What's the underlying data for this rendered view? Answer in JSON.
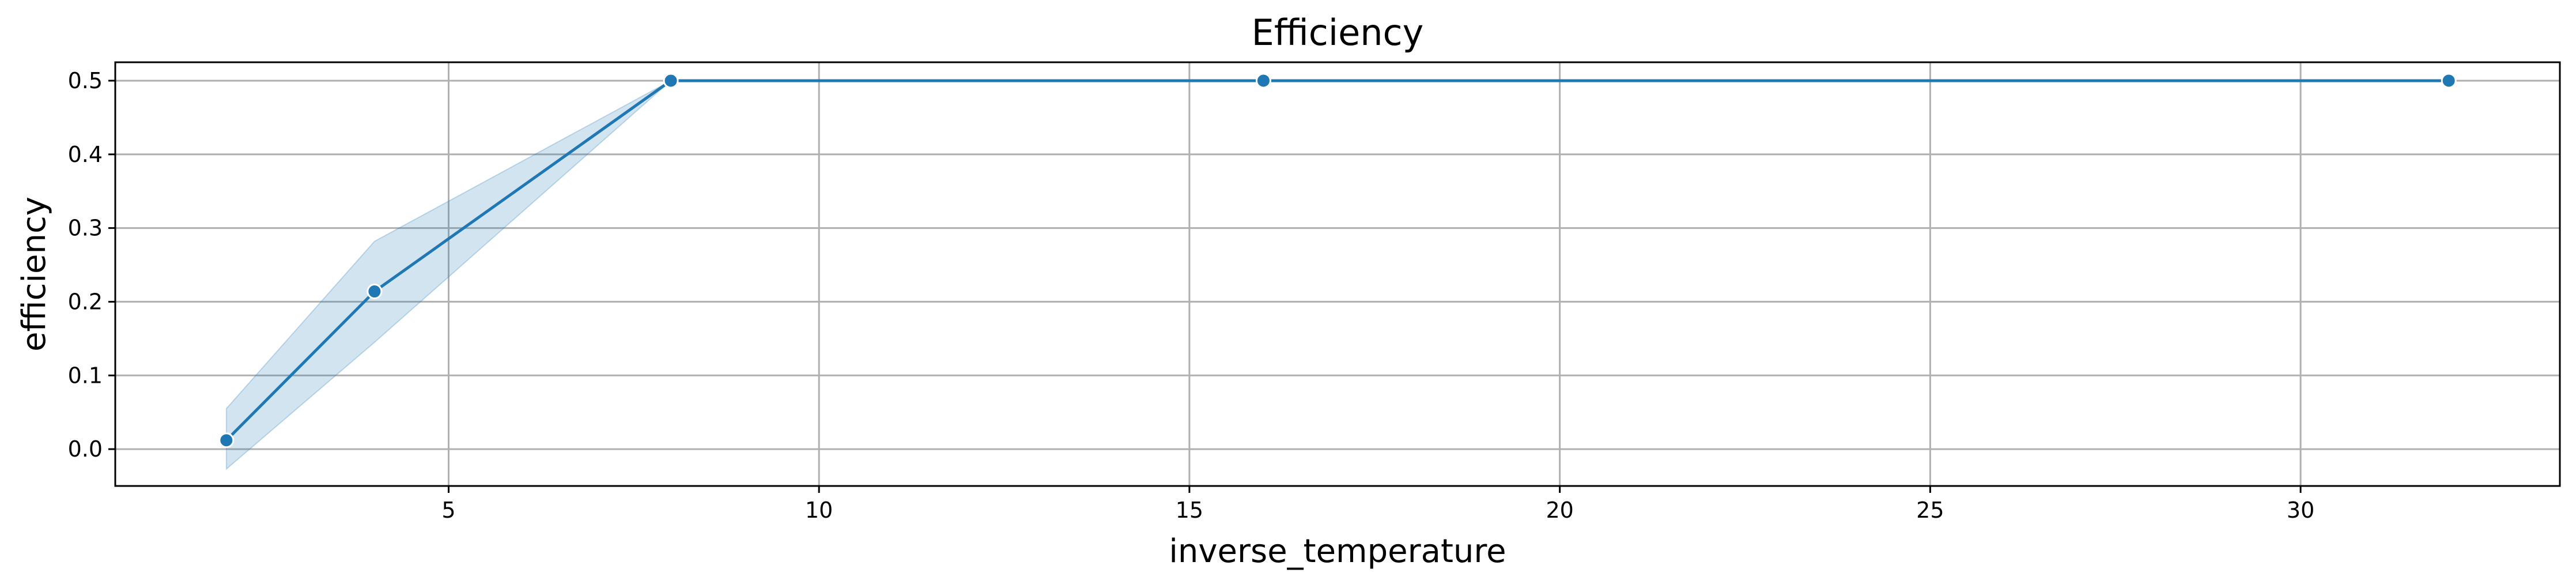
{
  "chart_data": {
    "type": "line",
    "title": "Efficiency",
    "xlabel": "inverse_temperature",
    "ylabel": "efficiency",
    "xlim": [
      0.5,
      33.5
    ],
    "ylim": [
      -0.05,
      0.525
    ],
    "x_ticks": [
      5,
      10,
      15,
      20,
      25,
      30
    ],
    "y_ticks": [
      0.0,
      0.1,
      0.2,
      0.3,
      0.4,
      0.5
    ],
    "x_tick_labels": [
      "5",
      "10",
      "15",
      "20",
      "25",
      "30"
    ],
    "y_tick_labels": [
      "0.0",
      "0.1",
      "0.2",
      "0.3",
      "0.4",
      "0.5"
    ],
    "grid": true,
    "legend": "none",
    "series": [
      {
        "x": [
          2,
          4,
          8,
          16,
          32
        ],
        "y": [
          0.012,
          0.214,
          0.5,
          0.5,
          0.5
        ],
        "ci_lower": [
          -0.027,
          0.145,
          0.5,
          0.5,
          0.5
        ],
        "ci_upper": [
          0.055,
          0.282,
          0.5,
          0.5,
          0.5
        ],
        "color": "#1f77b4"
      }
    ]
  }
}
